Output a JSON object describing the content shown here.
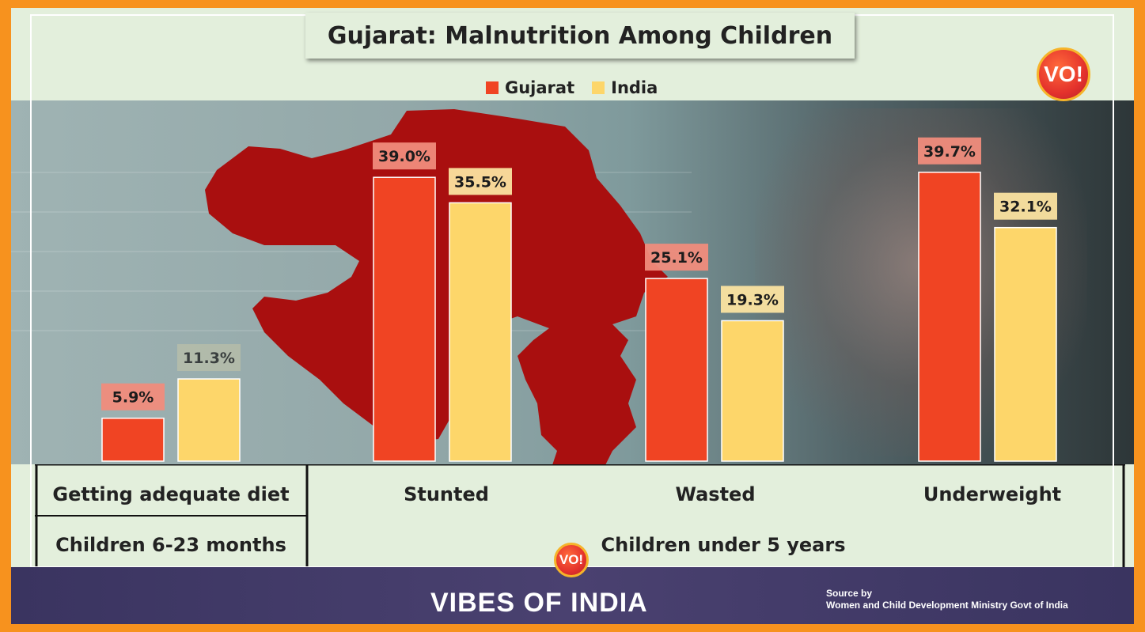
{
  "title": "Gujarat:  Malnutrition Among Children",
  "logo_text": "VO!",
  "brand": "VIBES OF INDIA",
  "source_line1": "Source by",
  "source_line2": "Women and Child Development Ministry Govt of India",
  "colors": {
    "gujarat": "#f04423",
    "india": "#fdd66a",
    "gujarat_label_bg": "#f08c7c",
    "india_label_bg": "#fbe3a0",
    "map": "#a90f0f"
  },
  "groups": {
    "left_top": "Getting adequate diet",
    "left_bottom": "Children 6-23 months",
    "right_bottom": "Children under 5 years"
  },
  "chart_data": {
    "type": "bar",
    "title": "Gujarat:  Malnutrition Among Children",
    "categories": [
      "Getting adequate diet",
      "Stunted",
      "Wasted",
      "Underweight"
    ],
    "series": [
      {
        "name": "Gujarat",
        "values": [
          5.9,
          39.0,
          25.1,
          39.7
        ],
        "labels": [
          "5.9%",
          "39.0%",
          "25.1%",
          "39.7%"
        ]
      },
      {
        "name": "India",
        "values": [
          11.3,
          35.5,
          19.3,
          32.1
        ],
        "labels": [
          "11.3%",
          "35.5%",
          "19.3%",
          "32.1%"
        ]
      }
    ],
    "ylim": [
      0,
      40
    ],
    "legend": "top-center",
    "grid": false,
    "xlabel": "",
    "ylabel": ""
  }
}
